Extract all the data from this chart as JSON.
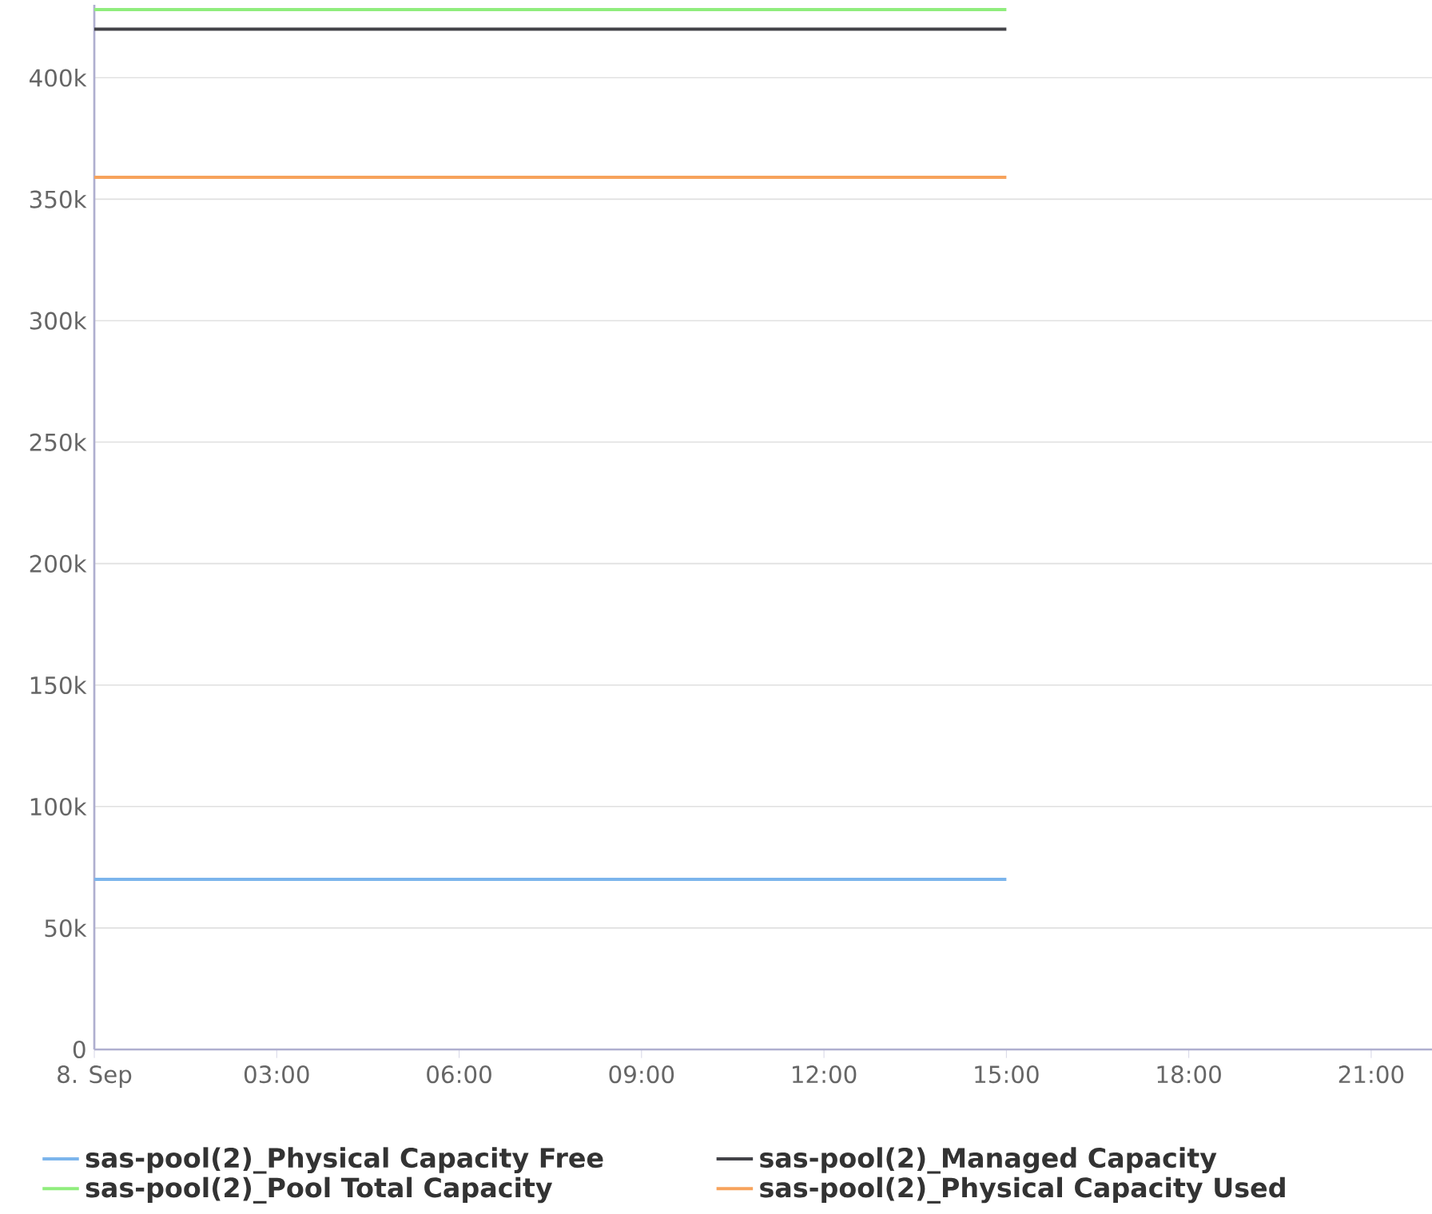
{
  "chart_data": {
    "type": "line",
    "x": [
      0,
      15
    ],
    "series": [
      {
        "name": "sas-pool(2)_Physical Capacity Free",
        "color": "#7cb5ec",
        "values": [
          70000,
          70000
        ]
      },
      {
        "name": "sas-pool(2)_Managed Capacity",
        "color": "#434348",
        "values": [
          420000,
          420000
        ]
      },
      {
        "name": "sas-pool(2)_Pool Total Capacity",
        "color": "#90ed7d",
        "values": [
          428000,
          428000
        ]
      },
      {
        "name": "sas-pool(2)_Physical Capacity Used",
        "color": "#f7a35c",
        "values": [
          359000,
          359000
        ]
      }
    ],
    "xlim": [
      0,
      22
    ],
    "xticks": [
      {
        "value": 0,
        "label": "8. Sep"
      },
      {
        "value": 3,
        "label": "03:00"
      },
      {
        "value": 6,
        "label": "06:00"
      },
      {
        "value": 9,
        "label": "09:00"
      },
      {
        "value": 12,
        "label": "12:00"
      },
      {
        "value": 15,
        "label": "15:00"
      },
      {
        "value": 18,
        "label": "18:00"
      },
      {
        "value": 21,
        "label": "21:00"
      }
    ],
    "ylim": [
      0,
      430000
    ],
    "yticks": [
      {
        "value": 0,
        "label": "0"
      },
      {
        "value": 50000,
        "label": "50k"
      },
      {
        "value": 100000,
        "label": "100k"
      },
      {
        "value": 150000,
        "label": "150k"
      },
      {
        "value": 200000,
        "label": "200k"
      },
      {
        "value": 250000,
        "label": "250k"
      },
      {
        "value": 300000,
        "label": "300k"
      },
      {
        "value": 350000,
        "label": "350k"
      },
      {
        "value": 400000,
        "label": "400k"
      }
    ],
    "grid": "y",
    "legend": "bottom",
    "marker": "none",
    "line_style": "solid"
  }
}
